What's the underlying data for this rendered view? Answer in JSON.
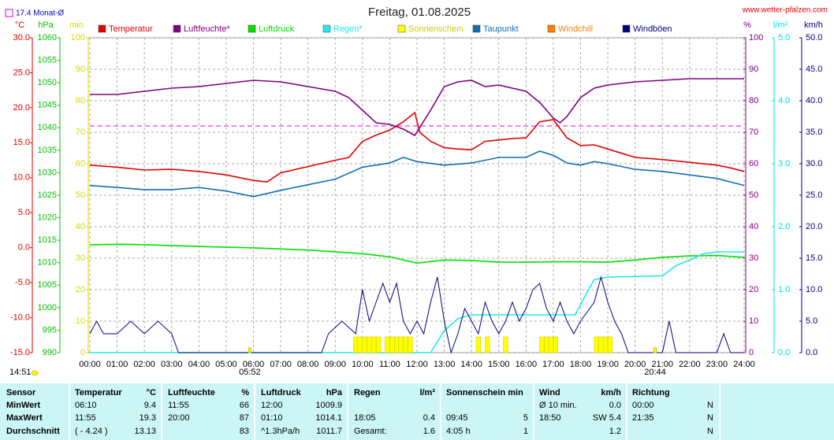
{
  "chart_data": {
    "type": "line",
    "title": "Freitag, 01.08.2025",
    "source": "www.wetter-pfalzen.com",
    "monthly_avg": {
      "label": "17.4 Monat-Ø",
      "value": 17.4,
      "color": "#e000e0"
    },
    "now_label": "14:51",
    "sunrise": {
      "label": "05:52",
      "x": 5.867
    },
    "sunset": {
      "label": "20:44",
      "x": 20.733
    },
    "xlim": [
      0,
      24
    ],
    "xticks": [
      {
        "value": 0,
        "label": "00:00"
      },
      {
        "value": 1,
        "label": "01:00"
      },
      {
        "value": 2,
        "label": "02:00"
      },
      {
        "value": 3,
        "label": "03:00"
      },
      {
        "value": 4,
        "label": "04:00"
      },
      {
        "value": 5,
        "label": "05:00"
      },
      {
        "value": 6,
        "label": "06:00"
      },
      {
        "value": 7,
        "label": "07:00"
      },
      {
        "value": 8,
        "label": "08:00"
      },
      {
        "value": 9,
        "label": "09:00"
      },
      {
        "value": 10,
        "label": "10:00"
      },
      {
        "value": 11,
        "label": "11:00"
      },
      {
        "value": 12,
        "label": "12:00"
      },
      {
        "value": 13,
        "label": "13:00"
      },
      {
        "value": 14,
        "label": "14:00"
      },
      {
        "value": 15,
        "label": "15:00"
      },
      {
        "value": 16,
        "label": "16:00"
      },
      {
        "value": 17,
        "label": "17:00"
      },
      {
        "value": 18,
        "label": "18:00"
      },
      {
        "value": 19,
        "label": "19:00"
      },
      {
        "value": 20,
        "label": "20:00"
      },
      {
        "value": 21,
        "label": "21:00"
      },
      {
        "value": 22,
        "label": "22:00"
      },
      {
        "value": 23,
        "label": "23:00"
      },
      {
        "value": 24,
        "label": "24:00"
      }
    ],
    "grid": true,
    "axes": [
      {
        "label": "°C",
        "side": "left",
        "color": "#e00000",
        "lim": [
          -15,
          30
        ],
        "ticks": [
          {
            "value": 30,
            "label": "30.0"
          },
          {
            "value": 25,
            "label": "25.0"
          },
          {
            "value": 20,
            "label": "20.0"
          },
          {
            "value": 15,
            "label": "15.0"
          },
          {
            "value": 10,
            "label": "10.0"
          },
          {
            "value": 5,
            "label": "5.0"
          },
          {
            "value": 0,
            "label": "0.0"
          },
          {
            "value": -5,
            "label": "-5.0"
          },
          {
            "value": -10,
            "label": "-10.0"
          },
          {
            "value": -15,
            "label": "-15.0"
          }
        ]
      },
      {
        "label": "hPa",
        "side": "left",
        "color": "#00c000",
        "lim": [
          990,
          1060
        ],
        "ticks": [
          1060,
          1055,
          1050,
          1045,
          1040,
          1035,
          1030,
          1025,
          1020,
          1015,
          1010,
          1005,
          1000,
          995,
          990
        ]
      },
      {
        "label": "min",
        "side": "left",
        "color": "#d8d800",
        "lim": [
          0,
          100
        ],
        "ticks": [
          100,
          90,
          80,
          70,
          60,
          50,
          40,
          30,
          20,
          10,
          0
        ]
      },
      {
        "label": "%",
        "side": "right",
        "color": "#800080",
        "lim": [
          0,
          100
        ],
        "ticks": [
          100,
          90,
          80,
          70,
          60,
          50,
          40,
          30,
          20,
          10,
          0
        ]
      },
      {
        "label": "l/m²",
        "side": "right",
        "color": "#00e0e0",
        "lim": [
          0,
          5
        ],
        "ticks": [
          {
            "value": 5,
            "label": "5.0"
          },
          {
            "value": 4,
            "label": "4.0"
          },
          {
            "value": 3,
            "label": "3.0"
          },
          {
            "value": 2,
            "label": "2.0"
          },
          {
            "value": 1,
            "label": "1.0"
          },
          {
            "value": 0,
            "label": "0.0"
          }
        ]
      },
      {
        "label": "km/h",
        "side": "right",
        "color": "#000080",
        "lim": [
          0,
          50
        ],
        "ticks": [
          {
            "value": 50,
            "label": "50.0"
          },
          {
            "value": 45,
            "label": "45.0"
          },
          {
            "value": 40,
            "label": "40.0"
          },
          {
            "value": 35,
            "label": "35.0"
          },
          {
            "value": 30,
            "label": "30.0"
          },
          {
            "value": 25,
            "label": "25.0"
          },
          {
            "value": 20,
            "label": "20.0"
          },
          {
            "value": 15,
            "label": "15.0"
          },
          {
            "value": 10,
            "label": "10.0"
          },
          {
            "value": 5,
            "label": "5.0"
          },
          {
            "value": 0,
            "label": "0.0"
          }
        ]
      }
    ],
    "series": [
      {
        "name": "Temperatur",
        "color": "#e00000",
        "axis": 0,
        "kind": "line",
        "x": [
          0,
          1,
          2,
          3,
          4,
          5,
          6,
          6.5,
          7,
          8,
          9,
          9.5,
          10,
          10.5,
          11,
          11.5,
          11.92,
          12.1,
          12.5,
          13,
          13.5,
          14,
          14.5,
          15,
          15.5,
          16,
          16.5,
          17,
          17.5,
          18,
          18.5,
          19,
          19.5,
          20,
          21,
          22,
          23,
          23.5,
          24
        ],
        "values": [
          11.8,
          11.5,
          11.1,
          11.2,
          10.9,
          10.4,
          9.6,
          9.4,
          10.7,
          11.6,
          12.5,
          12.9,
          15.2,
          16.1,
          16.8,
          18.0,
          19.3,
          16.5,
          15.2,
          14.3,
          14.1,
          14.0,
          15.2,
          15.4,
          15.6,
          15.7,
          18.0,
          18.3,
          15.7,
          14.6,
          14.7,
          14.1,
          13.5,
          12.9,
          12.6,
          12.2,
          11.8,
          11.4,
          10.9
        ]
      },
      {
        "name": "Luftfeuchte*",
        "color": "#800080",
        "axis": 3,
        "kind": "line",
        "x": [
          0,
          1,
          2,
          3,
          4,
          5,
          6,
          7,
          8,
          9,
          9.5,
          10,
          10.5,
          11,
          11.5,
          11.92,
          12.5,
          13,
          13.5,
          14,
          14.5,
          15,
          16,
          16.5,
          17,
          17.25,
          17.5,
          18,
          18.5,
          19,
          20,
          21,
          22,
          24
        ],
        "values": [
          82,
          82,
          83,
          84,
          84.5,
          85.5,
          86.5,
          86,
          84.5,
          83,
          81,
          77,
          73,
          72.5,
          71,
          69,
          77,
          84.5,
          86,
          86.5,
          84.5,
          85,
          83,
          79.5,
          74.5,
          73,
          75,
          81,
          84,
          85,
          86,
          86.5,
          87,
          87
        ]
      },
      {
        "name": "Luftdruck",
        "color": "#00e000",
        "axis": 1,
        "kind": "line",
        "x": [
          0,
          1.17,
          2,
          4,
          6,
          8,
          10,
          11,
          12,
          13,
          14,
          15,
          16,
          17,
          18,
          19,
          20,
          21,
          22,
          23,
          24
        ],
        "values": [
          1014.0,
          1014.1,
          1014.0,
          1013.6,
          1013.3,
          1012.8,
          1012.0,
          1011.3,
          1009.9,
          1010.6,
          1010.5,
          1010.1,
          1010.1,
          1010.2,
          1010.2,
          1010.1,
          1010.6,
          1011.2,
          1011.5,
          1011.6,
          1011.2
        ]
      },
      {
        "name": "Regen*",
        "color": "#22e8e8",
        "axis": 4,
        "kind": "line",
        "x": [
          0,
          12.5,
          13,
          13.5,
          14,
          17.8,
          18.1,
          18.5,
          19,
          21,
          21.5,
          22,
          22.5,
          23,
          24
        ],
        "values": [
          0,
          0,
          0.35,
          0.54,
          0.6,
          0.6,
          0.85,
          1.16,
          1.2,
          1.22,
          1.38,
          1.47,
          1.57,
          1.6,
          1.6
        ]
      },
      {
        "name": "Sonnenschein",
        "color": "#ffff00",
        "axis": 2,
        "kind": "bar",
        "x": [
          9.67,
          9.83,
          10.0,
          10.17,
          10.33,
          10.5,
          10.83,
          11.0,
          11.17,
          11.33,
          11.5,
          11.67,
          14.17,
          14.5,
          15.17,
          16.5,
          16.67,
          16.83,
          17.0,
          18.5,
          18.67,
          18.83,
          19.0
        ],
        "values": [
          5,
          5,
          5,
          5,
          5,
          5,
          5,
          5,
          5,
          5,
          5,
          5,
          5,
          5,
          5,
          5,
          5,
          5,
          5,
          5,
          5,
          5,
          5
        ]
      },
      {
        "name": "Taupunkt",
        "color": "#1070b0",
        "axis": 0,
        "kind": "line",
        "x": [
          0,
          1,
          2,
          3,
          4,
          5,
          6,
          7,
          8,
          9,
          10,
          11,
          11.5,
          12,
          13,
          14,
          15,
          16,
          16.5,
          17,
          17.5,
          18,
          18.5,
          19,
          20,
          21,
          22,
          23,
          24
        ],
        "values": [
          8.9,
          8.6,
          8.3,
          8.3,
          8.6,
          8.1,
          7.3,
          8.2,
          9.0,
          9.8,
          11.5,
          12.1,
          12.9,
          12.3,
          11.8,
          12.1,
          12.9,
          12.9,
          13.8,
          13.2,
          12.1,
          11.8,
          12.3,
          12.0,
          11.2,
          10.9,
          10.4,
          9.9,
          8.9
        ]
      },
      {
        "name": "Windchill",
        "color": "#ff8000",
        "axis": 0,
        "kind": "line"
      },
      {
        "name": "Windböen",
        "color": "#000080",
        "axis": 5,
        "kind": "line",
        "x": [
          0,
          0.25,
          0.5,
          1,
          1.5,
          2,
          2.5,
          3,
          3.25,
          8.5,
          8.75,
          9.25,
          9.75,
          10,
          10.25,
          10.5,
          10.75,
          11,
          11.25,
          11.5,
          11.75,
          12,
          12.25,
          12.5,
          12.75,
          13,
          13.25,
          13.5,
          13.75,
          14,
          14.25,
          14.5,
          14.75,
          15,
          15.25,
          15.5,
          15.75,
          16,
          16.25,
          16.5,
          16.75,
          17,
          17.25,
          17.5,
          17.75,
          18,
          18.5,
          18.75,
          19,
          19.25,
          19.5,
          19.75,
          21,
          21.25,
          21.5,
          23,
          23.25,
          23.5,
          24
        ],
        "values": [
          3,
          5,
          3,
          3,
          5,
          3,
          5,
          3,
          0,
          0,
          3,
          5,
          3,
          10,
          5,
          8,
          11,
          8,
          11,
          5,
          3,
          5,
          3,
          8,
          12,
          5,
          0,
          3,
          7,
          5,
          3,
          8,
          5,
          3,
          5,
          8,
          5,
          7,
          10,
          11,
          7,
          5,
          8,
          5,
          3,
          5,
          8,
          12,
          8,
          5,
          3,
          0,
          0,
          5,
          0,
          0,
          3,
          0,
          0
        ]
      }
    ]
  },
  "table": {
    "header": [
      "Sensor",
      "Temperatur",
      "°C",
      "Luftfeuchte",
      "%",
      "Luftdruck",
      "hPa",
      "Regen",
      "l/m²",
      "Sonnenschein min",
      null,
      "Wind",
      "km/h",
      "Richtung",
      null
    ],
    "rows": [
      [
        "MinWert",
        "06:10",
        "9.4",
        "11:55",
        "66",
        "12:00",
        "1009.9",
        null,
        null,
        null,
        null,
        "Ø 10 min.",
        "0.0",
        "00:00",
        "N"
      ],
      [
        "MaxWert",
        "11:55",
        "19.3",
        "20:00",
        "87",
        "01:10",
        "1014.1",
        "18:05",
        "0.4",
        "09:45",
        "5",
        "18:50",
        "SW 5.4",
        "21:35",
        "N"
      ],
      [
        "Durchschnitt",
        "( - 4.24 )",
        "13.13",
        null,
        "83",
        "^1.3hPa/h",
        "1011.7",
        "Gesamt:",
        "1.6",
        "4:05 h",
        "1",
        null,
        "1.2",
        null,
        "N"
      ]
    ]
  }
}
